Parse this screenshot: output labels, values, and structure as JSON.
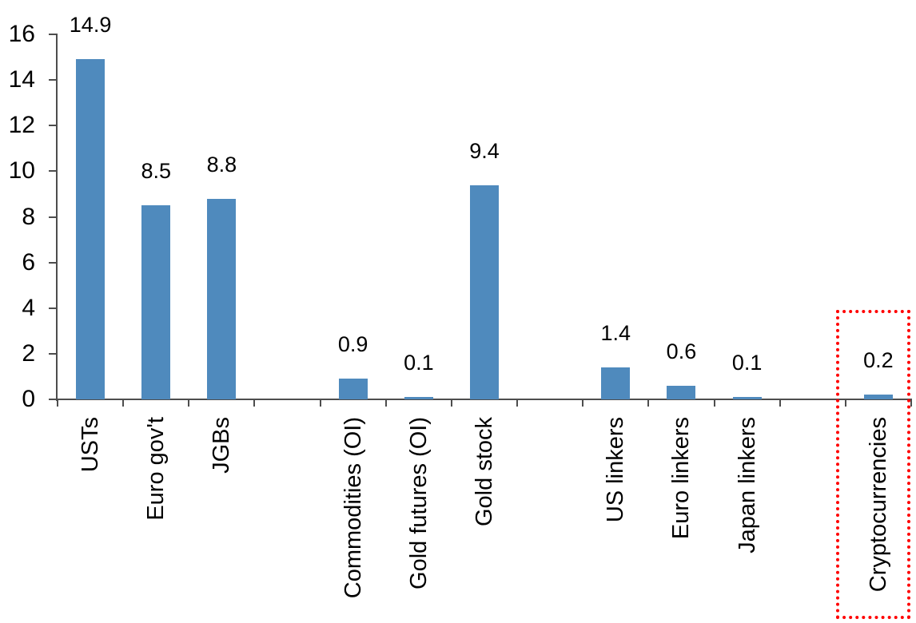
{
  "chart_data": {
    "type": "bar",
    "title": "",
    "xlabel": "",
    "ylabel": "",
    "categories": [
      "USTs",
      "Euro gov't",
      "JGBs",
      "",
      "Commodities (OI)",
      "Gold futures (OI)",
      "Gold stock",
      "",
      "US linkers",
      "Euro linkers",
      "Japan linkers",
      "",
      "Cryptocurrencies"
    ],
    "values": [
      14.9,
      8.5,
      8.8,
      null,
      0.9,
      0.1,
      9.4,
      null,
      1.4,
      0.6,
      0.1,
      null,
      0.2
    ],
    "data_labels": [
      "14.9",
      "8.5",
      "8.8",
      "",
      "0.9",
      "0.1",
      "9.4",
      "",
      "1.4",
      "0.6",
      "0.1",
      "",
      "0.2"
    ],
    "y_ticks": [
      0,
      2,
      4,
      6,
      8,
      10,
      12,
      14,
      16
    ],
    "ylim": [
      0,
      16
    ],
    "grid": false,
    "legend": false,
    "bar_color": "#4F8ABD",
    "axis_color": "#4D4D4D",
    "text_color": "#000000",
    "highlight": {
      "category": "Cryptocurrencies",
      "value": 0.2,
      "style": "red-dotted-rectangle",
      "color": "#FF0000"
    }
  }
}
